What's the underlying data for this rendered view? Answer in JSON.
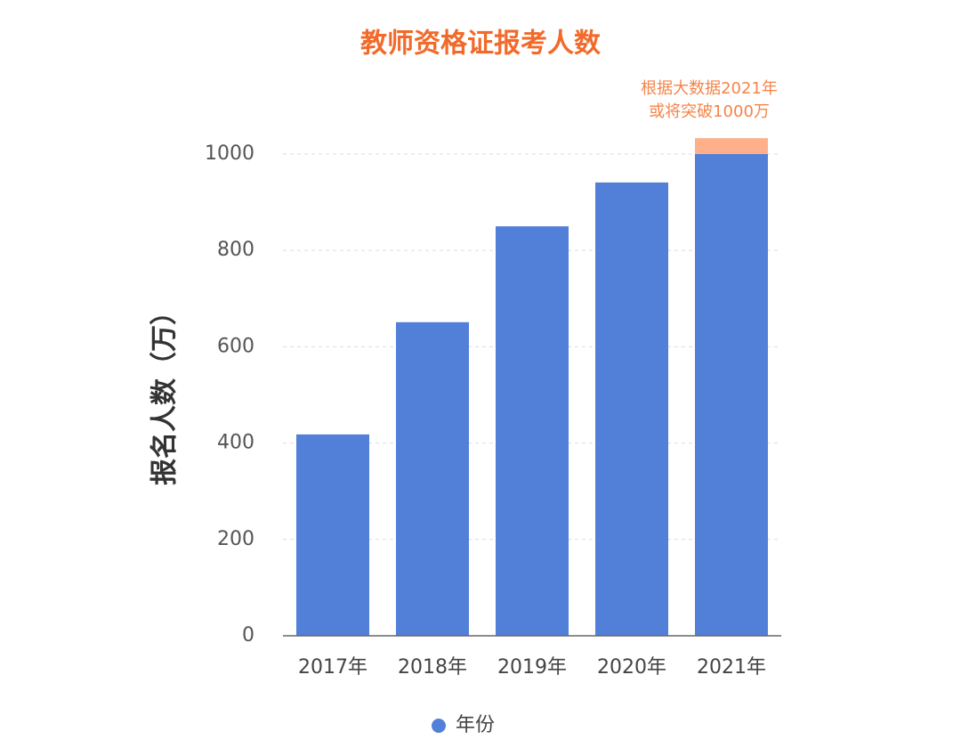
{
  "chart_data": {
    "type": "bar",
    "title": "教师资格证报考人数",
    "annotation": [
      "根据大数据2021年",
      "或将突破1000万"
    ],
    "y_label": "报名人数（万）",
    "categories": [
      "2017年",
      "2018年",
      "2019年",
      "2020年",
      "2021年"
    ],
    "series": [
      {
        "name": "年份",
        "color": "#5280d9",
        "values": [
          418,
          651,
          850,
          941,
          1000
        ]
      }
    ],
    "highlight": {
      "color": "#ffb08a",
      "values": [
        null,
        null,
        null,
        null,
        33
      ]
    },
    "ylim": [
      0,
      1000
    ],
    "yticks": [
      0,
      200,
      400,
      600,
      800,
      1000
    ],
    "grid": true
  }
}
